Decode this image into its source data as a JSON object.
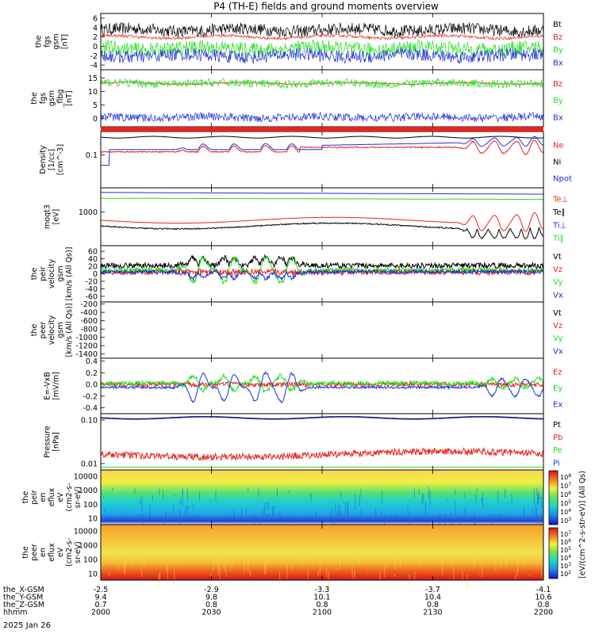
{
  "title": "P4 (TH-E) fields and ground moments overview",
  "date_label": "2025 Jan 26",
  "colors": {
    "black": "#000000",
    "red": "#e8231e",
    "green": "#22e01e",
    "blue": "#1f2fd8"
  },
  "xaxis": {
    "row_labels": [
      "the_X-GSM",
      "the_Y-GSM",
      "the_Z-GSM",
      "hhmm"
    ],
    "columns": [
      [
        "-2.5",
        "9.4",
        "0.7",
        "2000"
      ],
      [
        "-2.9",
        "9.8",
        "0.8",
        "2030"
      ],
      [
        "-3.3",
        "10.1",
        "0.8",
        "2100"
      ],
      [
        "-3.7",
        "10.4",
        "0.8",
        "2130"
      ],
      [
        "-4.1",
        "10.6",
        "0.8",
        "2200"
      ]
    ]
  },
  "colorbar": {
    "label": "[eV/(cm^2-s-str-eV)] (All Qs)",
    "top_ticks": [
      "10^8",
      "10^7",
      "10^6",
      "10^5",
      "10^4",
      "10^3"
    ],
    "bottom_ticks": [
      "10^7",
      "10^6",
      "10^5",
      "10^4",
      "10^3",
      "10^2"
    ]
  },
  "chart_data": [
    {
      "type": "line",
      "ylabel": [
        "the",
        "fgs",
        "gsm",
        "[nT]"
      ],
      "ylim": [
        -5,
        7
      ],
      "yticks": [
        "6",
        "4",
        "2",
        "0",
        "-2",
        "-4"
      ],
      "series": [
        {
          "name": "Bt",
          "color": "black",
          "mean": 3.5,
          "noise": 1.3
        },
        {
          "name": "Bz",
          "color": "red",
          "mean": 2.0,
          "noise": 0.3
        },
        {
          "name": "By",
          "color": "green",
          "mean": -0.5,
          "noise": 1.6
        },
        {
          "name": "Bx",
          "color": "blue",
          "mean": -2.0,
          "noise": 1.4
        }
      ]
    },
    {
      "type": "line",
      "ylabel": [
        "the",
        "fgs",
        "gsm",
        "_flbg",
        "[nT]"
      ],
      "ylim": [
        -3,
        18
      ],
      "yticks": [
        "15",
        "10",
        "5",
        "0"
      ],
      "series": [
        {
          "name": "Bz",
          "color": "red",
          "mean": 13,
          "noise": 0.3
        },
        {
          "name": "By",
          "color": "green",
          "mean": 13,
          "noise": 1.5
        },
        {
          "name": "Bx",
          "color": "blue",
          "mean": 0.5,
          "noise": 1.5
        }
      ]
    },
    {
      "type": "line",
      "ylabel": [
        "Density",
        "[1/cc]",
        "[cm^-3]"
      ],
      "yscale": "log",
      "yticks": [
        "0.1"
      ],
      "series": [
        {
          "name": "Ne",
          "color": "red"
        },
        {
          "name": "Ni",
          "color": "black"
        },
        {
          "name": "Npot",
          "color": "blue"
        }
      ]
    },
    {
      "type": "line",
      "ylabel": [
        "moqt3",
        "[eV]"
      ],
      "yscale": "log",
      "yticks": [
        "1000"
      ],
      "series": [
        {
          "name": "Te⊥",
          "color": "red"
        },
        {
          "name": "Te∥",
          "color": "black"
        },
        {
          "name": "Ti⊥",
          "color": "blue"
        },
        {
          "name": "Ti∥",
          "color": "green"
        }
      ]
    },
    {
      "type": "line",
      "ylabel": [
        "the",
        "peir",
        "velocity",
        "gsm",
        "[km/s (All Qs)]"
      ],
      "ylim": [
        -75,
        75
      ],
      "yticks": [
        "60",
        "40",
        "20",
        "0",
        "-20",
        "-40",
        "-60"
      ],
      "series": [
        {
          "name": "Vt",
          "color": "black"
        },
        {
          "name": "Vz",
          "color": "red"
        },
        {
          "name": "Vy",
          "color": "green"
        },
        {
          "name": "Vx",
          "color": "blue"
        }
      ]
    },
    {
      "type": "line",
      "ylabel": [
        "the",
        "peer",
        "velocity",
        "gsm",
        "[km/s (All Qs)]"
      ],
      "ylim": [
        -1500,
        -150
      ],
      "yticks": [
        "-200",
        "-400",
        "-600",
        "-800",
        "-1000",
        "-1200",
        "-1400"
      ],
      "series": [
        {
          "name": "Vt",
          "color": "black"
        },
        {
          "name": "Vz",
          "color": "red"
        },
        {
          "name": "Vy",
          "color": "green"
        },
        {
          "name": "Vx",
          "color": "blue"
        }
      ]
    },
    {
      "type": "line",
      "ylabel": [
        "E=-VxB",
        "[mV/m]"
      ],
      "ylim": [
        -0.5,
        0.45
      ],
      "yticks": [
        "0.4",
        "0.2",
        "0.0",
        "-0.2",
        "-0.4"
      ],
      "series": [
        {
          "name": "Ez",
          "color": "red"
        },
        {
          "name": "Ey",
          "color": "green"
        },
        {
          "name": "Ex",
          "color": "blue"
        }
      ]
    },
    {
      "type": "line",
      "ylabel": [
        "Pressure",
        "[nPa]"
      ],
      "yscale": "log",
      "yticks": [
        "0.10",
        "0.01"
      ],
      "series": [
        {
          "name": "Pt",
          "color": "black"
        },
        {
          "name": "Pb",
          "color": "red"
        },
        {
          "name": "Pe",
          "color": "green"
        },
        {
          "name": "Pi",
          "color": "blue"
        }
      ]
    },
    {
      "type": "heatmap",
      "ylabel": [
        "the",
        "peir",
        "en",
        "eflux",
        "eV",
        "(cm2-s-",
        "sr-eV)"
      ],
      "yticks": [
        "10000",
        "1000",
        "100",
        "10"
      ]
    },
    {
      "type": "heatmap",
      "ylabel": [
        "the",
        "peer",
        "en",
        "eflux",
        "eV",
        "(cm2-s-",
        "sr-eV)"
      ],
      "yticks": [
        "10000",
        "1000",
        "100",
        "10"
      ]
    }
  ]
}
